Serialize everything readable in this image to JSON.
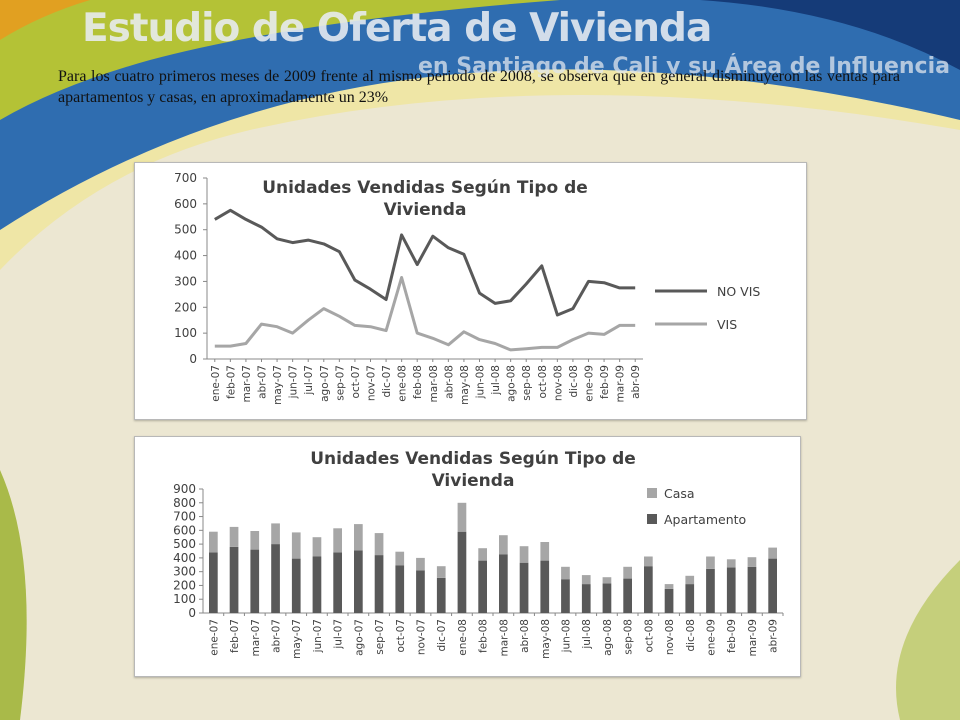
{
  "slide": {
    "title": "Estudio de Oferta de Vivienda",
    "subtitle": "en Santiago de Cali y su Área de Influencia",
    "intro": "Para los cuatro primeros meses de 2009 frente al mismo periodo de 2008, se observa que en general disminuyeron las ventas para apartamentos y casas, en aproximadamente un 23%"
  },
  "chart_data": [
    {
      "type": "line",
      "title_lines": [
        "Unidades Vendidas Según Tipo de",
        "Vivienda"
      ],
      "categories": [
        "ene-07",
        "feb-07",
        "mar-07",
        "abr-07",
        "may-07",
        "jun-07",
        "jul-07",
        "ago-07",
        "sep-07",
        "oct-07",
        "nov-07",
        "dic-07",
        "ene-08",
        "feb-08",
        "mar-08",
        "abr-08",
        "may-08",
        "jun-08",
        "jul-08",
        "ago-08",
        "sep-08",
        "oct-08",
        "nov-08",
        "dic-08",
        "ene-09",
        "feb-09",
        "mar-09",
        "abr-09"
      ],
      "series": [
        {
          "name": "NO VIS",
          "color": "#595959",
          "values": [
            540,
            575,
            540,
            510,
            465,
            450,
            460,
            445,
            415,
            305,
            270,
            230,
            480,
            365,
            475,
            430,
            405,
            255,
            215,
            225,
            290,
            360,
            170,
            195,
            300,
            295,
            275,
            275
          ]
        },
        {
          "name": "VIS",
          "color": "#a6a6a6",
          "values": [
            50,
            50,
            60,
            135,
            125,
            100,
            150,
            195,
            165,
            130,
            125,
            110,
            315,
            100,
            80,
            55,
            105,
            75,
            60,
            35,
            40,
            45,
            45,
            75,
            100,
            95,
            130,
            130
          ]
        }
      ],
      "ylim": [
        0,
        700
      ],
      "yticks": [
        0,
        100,
        200,
        300,
        400,
        500,
        600,
        700
      ],
      "legend": "right"
    },
    {
      "type": "bar",
      "stacked": true,
      "title_lines": [
        "Unidades Vendidas Según Tipo de",
        "Vivienda"
      ],
      "categories": [
        "ene-07",
        "feb-07",
        "mar-07",
        "abr-07",
        "may-07",
        "jun-07",
        "jul-07",
        "ago-07",
        "sep-07",
        "oct-07",
        "nov-07",
        "dic-07",
        "ene-08",
        "feb-08",
        "mar-08",
        "abr-08",
        "may-08",
        "jun-08",
        "jul-08",
        "ago-08",
        "sep-08",
        "oct-08",
        "nov-08",
        "dic-08",
        "ene-09",
        "feb-09",
        "mar-09",
        "abr-09"
      ],
      "series": [
        {
          "name": "Apartamento",
          "color": "#595959",
          "values": [
            440,
            480,
            460,
            500,
            395,
            410,
            440,
            455,
            420,
            345,
            310,
            255,
            590,
            380,
            425,
            365,
            380,
            245,
            210,
            215,
            250,
            340,
            175,
            210,
            320,
            330,
            335,
            395
          ]
        },
        {
          "name": "Casa",
          "color": "#a6a6a6",
          "values": [
            150,
            145,
            135,
            150,
            190,
            140,
            175,
            190,
            160,
            100,
            90,
            85,
            210,
            90,
            140,
            120,
            135,
            90,
            65,
            45,
            85,
            70,
            35,
            60,
            90,
            60,
            70,
            80
          ]
        }
      ],
      "ylim": [
        0,
        900
      ],
      "yticks": [
        0,
        100,
        200,
        300,
        400,
        500,
        600,
        700,
        800,
        900
      ],
      "legend": "top-right"
    }
  ]
}
